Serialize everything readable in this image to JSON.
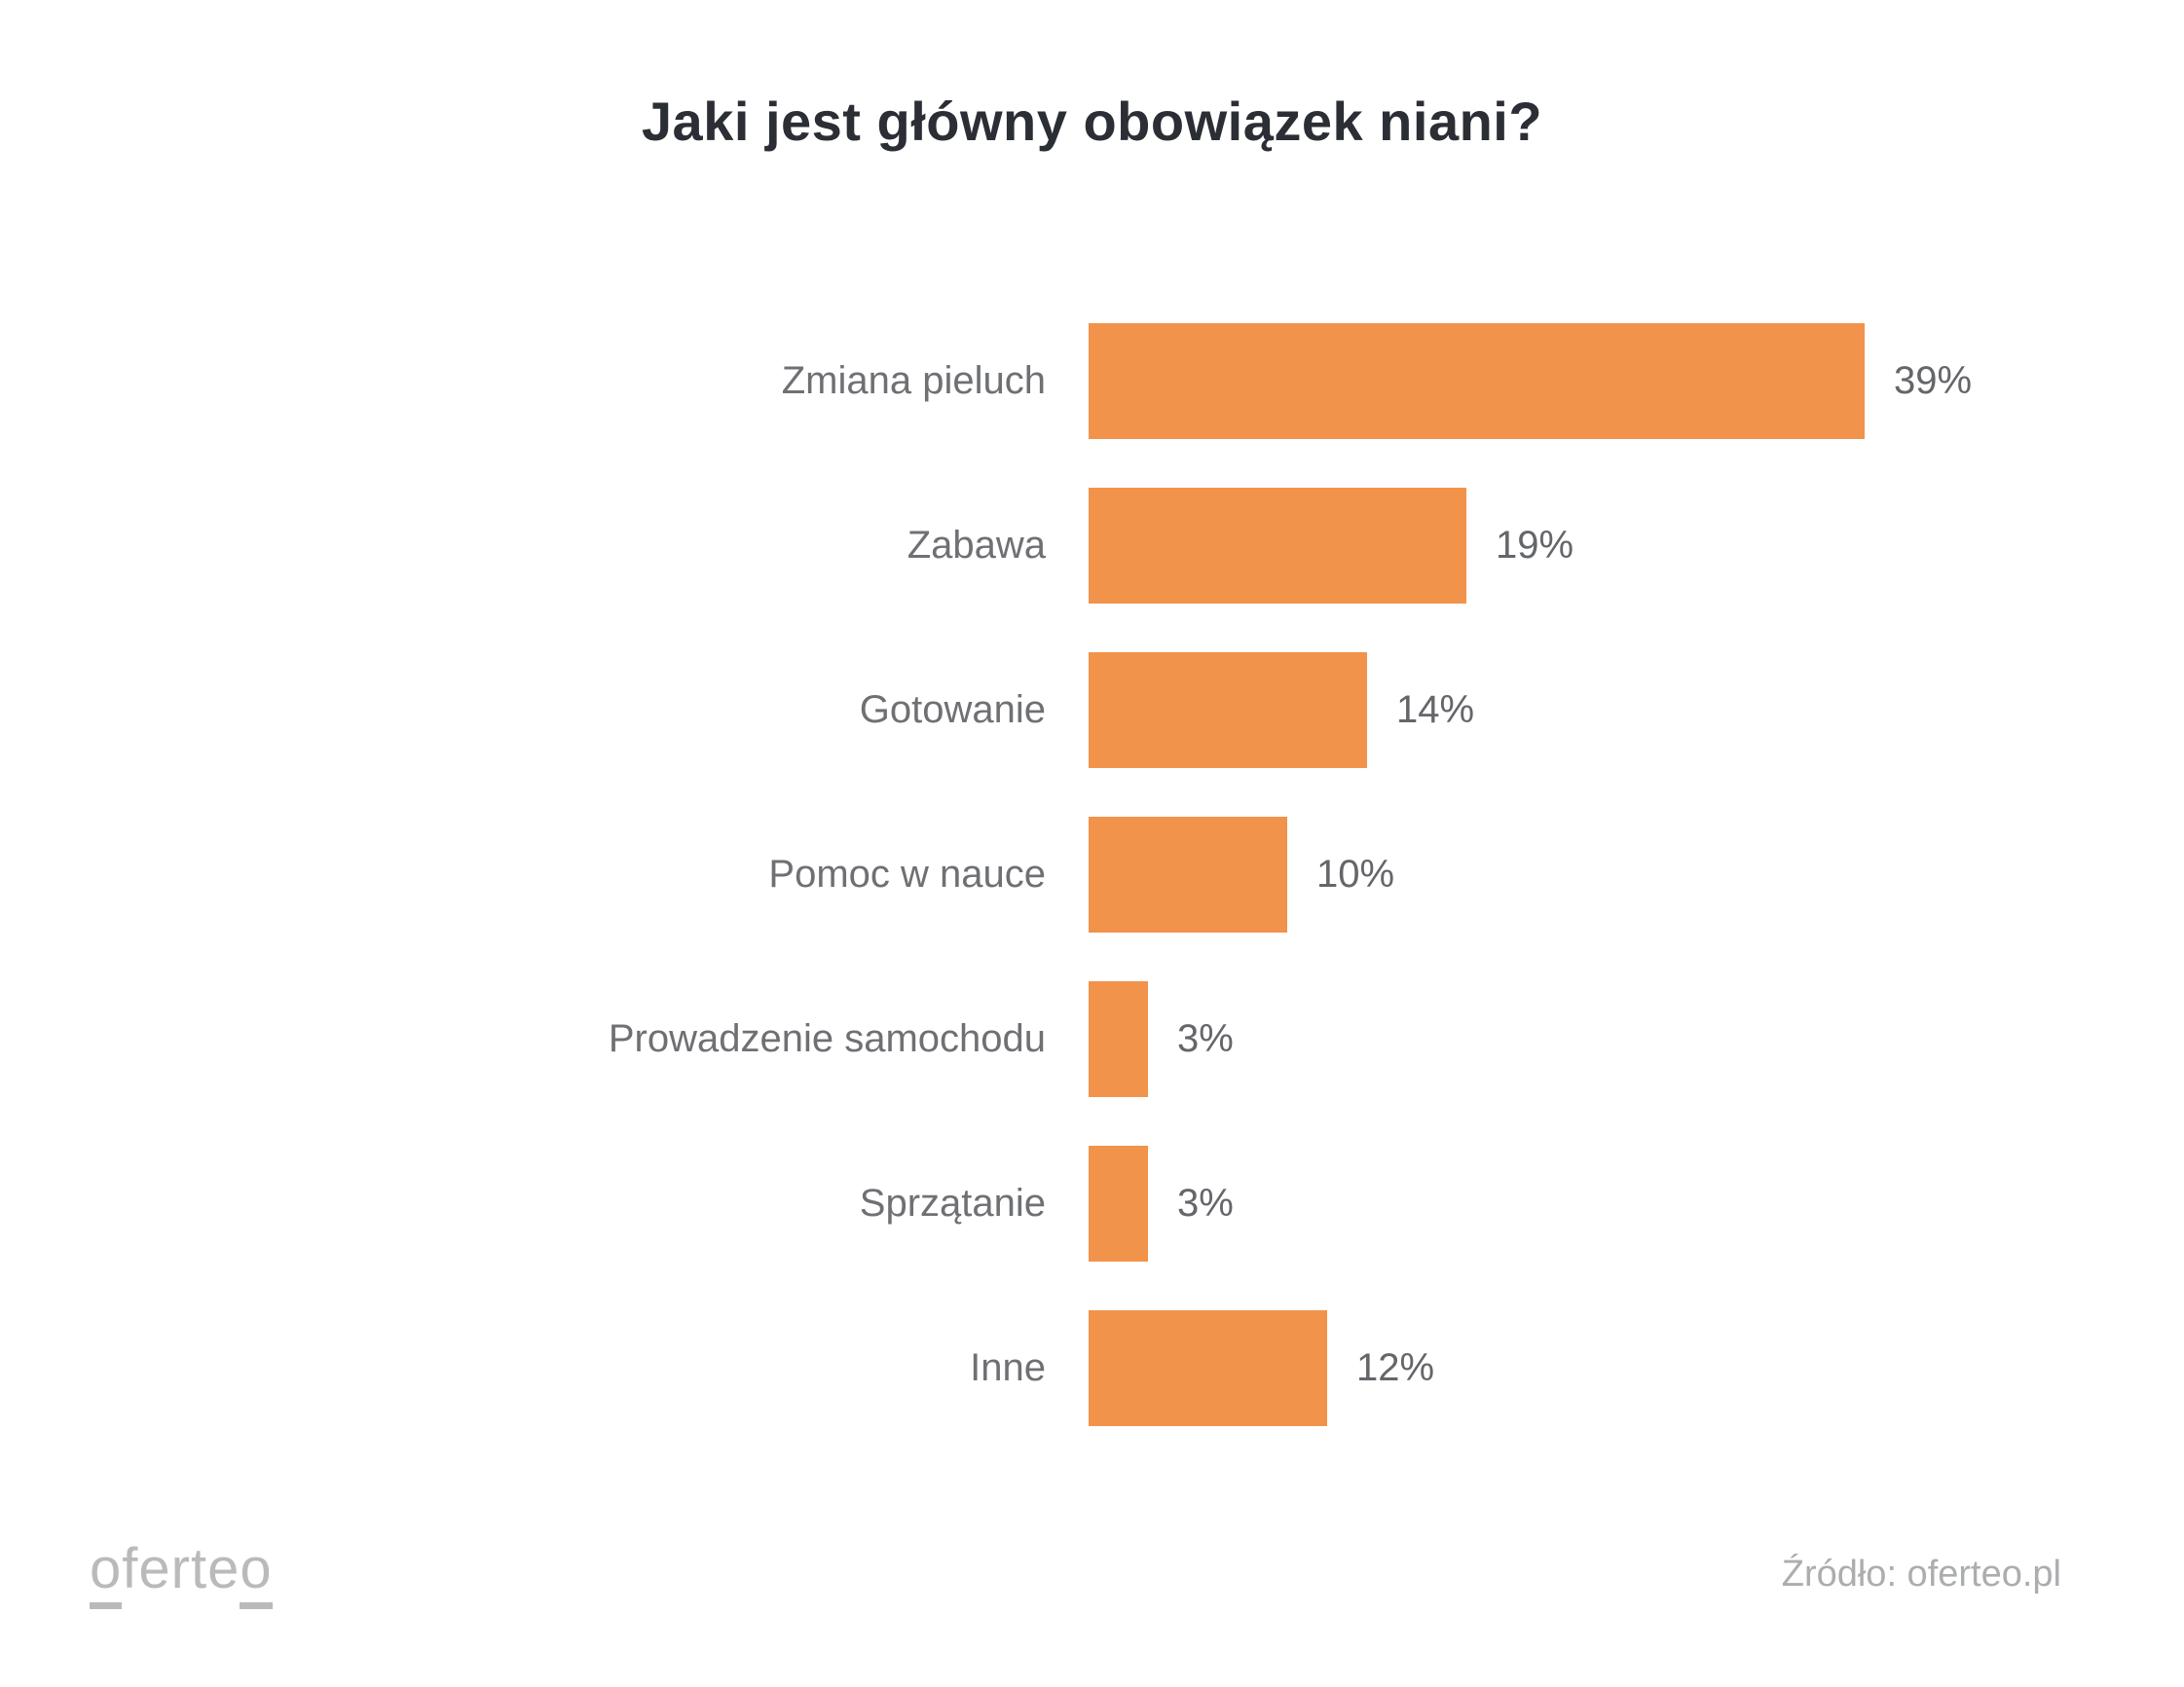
{
  "title": "Jaki jest główny obowiązek niani?",
  "chart_data": {
    "type": "bar",
    "orientation": "horizontal",
    "title": "Jaki jest główny obowiązek niani?",
    "categories": [
      "Zmiana pieluch",
      "Zabawa",
      "Gotowanie",
      "Pomoc w nauce",
      "Prowadzenie samochodu",
      "Sprzątanie",
      "Inne"
    ],
    "values": [
      39,
      19,
      14,
      10,
      3,
      3,
      12
    ],
    "value_labels": [
      "39%",
      "19%",
      "14%",
      "10%",
      "3%",
      "3%",
      "12%"
    ],
    "unit": "%",
    "xlim": [
      0,
      39
    ],
    "grid": false,
    "legend": false,
    "bar_color": "#f2934b"
  },
  "footer": {
    "logo": {
      "first_o": "o",
      "middle": "ferte",
      "last_o": "o"
    },
    "source": "Źródło: oferteo.pl"
  },
  "colors": {
    "background": "#ffffff",
    "bar": "#f2934b",
    "title": "#2b2e34",
    "category_label": "#6e7074",
    "value_label": "#64666a",
    "logo": "#b9babc",
    "source": "#abadaf"
  }
}
